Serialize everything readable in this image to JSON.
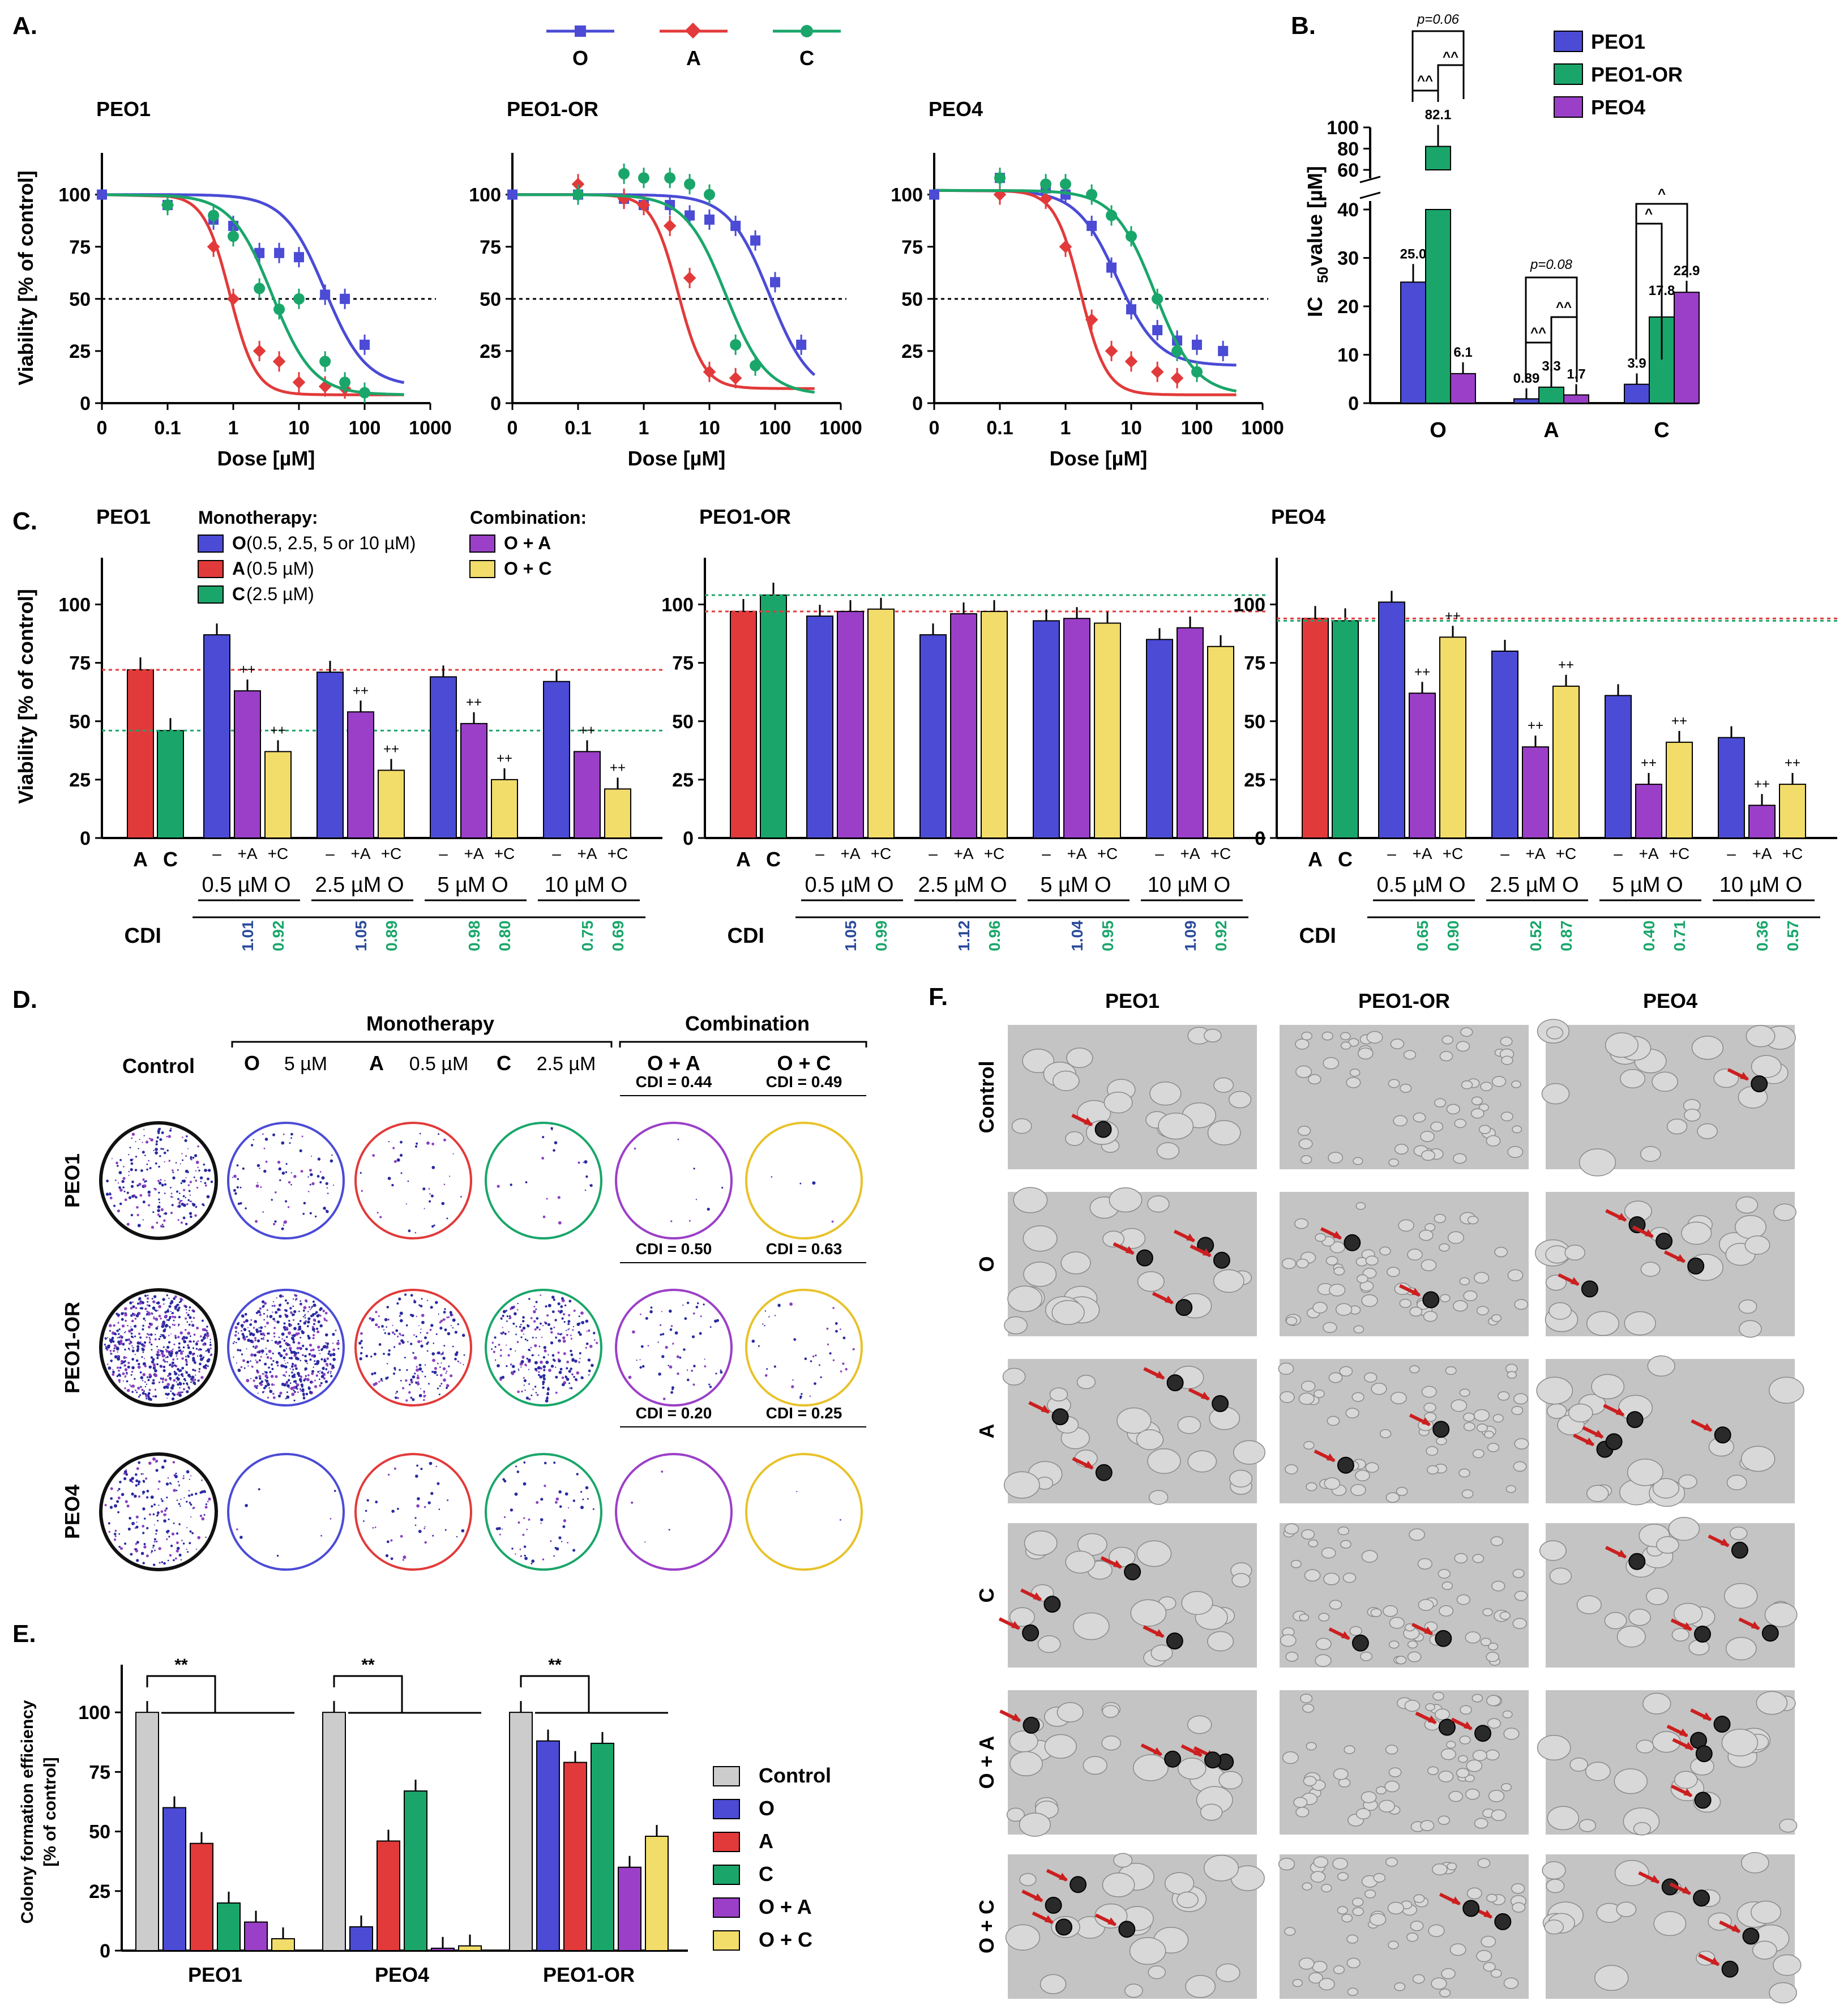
{
  "colors": {
    "O": "#4b4bd6",
    "A": "#e23a3a",
    "C": "#1aa66a",
    "OA": "#9b3fc8",
    "OC": "#f2dc6a",
    "Control": "#cccccc",
    "axis": "#000000"
  },
  "panel_labels": {
    "A": "A.",
    "B": "B.",
    "C": "C.",
    "D": "D.",
    "E": "E.",
    "F": "F."
  },
  "legend_A": {
    "O": "O",
    "A": "A",
    "C": "C"
  },
  "panel_A": {
    "ylabel": "Viability [% of control]",
    "xlabel": "Dose [µM]",
    "yticks": [
      "0",
      "25",
      "50",
      "75",
      "100"
    ],
    "xticks": [
      "0",
      "0.1",
      "1",
      "10",
      "100",
      "1000"
    ],
    "cells": [
      "PEO1",
      "PEO1-OR",
      "PEO4"
    ]
  },
  "chart_data": [
    {
      "type": "line",
      "title": "PEO1",
      "xlabel": "Dose [µM]",
      "ylabel": "Viability [% of control]",
      "xscale": "log",
      "ylim": [
        0,
        120
      ],
      "series": [
        {
          "name": "O",
          "x": [
            0.1,
            0.5,
            1,
            2.5,
            5,
            10,
            25,
            50,
            100
          ],
          "y": [
            95,
            88,
            85,
            72,
            72,
            70,
            52,
            50,
            28
          ],
          "ic50": 25.0
        },
        {
          "name": "A",
          "x": [
            0.1,
            0.5,
            1,
            2.5,
            5,
            10,
            25,
            50,
            100
          ],
          "y": [
            95,
            75,
            50,
            25,
            20,
            10,
            8,
            7,
            5
          ],
          "ic50": 0.89
        },
        {
          "name": "C",
          "x": [
            0.1,
            0.5,
            1,
            2.5,
            5,
            10,
            25,
            50,
            100
          ],
          "y": [
            95,
            90,
            80,
            55,
            45,
            50,
            20,
            10,
            5
          ],
          "ic50": 3.9
        }
      ]
    },
    {
      "type": "line",
      "title": "PEO1-OR",
      "xlabel": "Dose [µM]",
      "ylabel": "Viability [% of control]",
      "xscale": "log",
      "ylim": [
        0,
        120
      ],
      "series": [
        {
          "name": "O",
          "x": [
            0.1,
            0.5,
            1,
            2.5,
            5,
            10,
            25,
            50,
            100,
            250
          ],
          "y": [
            100,
            98,
            95,
            95,
            90,
            88,
            85,
            78,
            58,
            28
          ],
          "ic50": 82.1
        },
        {
          "name": "A",
          "x": [
            0.1,
            0.5,
            1,
            2.5,
            5,
            10,
            25
          ],
          "y": [
            105,
            98,
            95,
            85,
            60,
            15,
            12
          ],
          "ic50": 3.3
        },
        {
          "name": "C",
          "x": [
            0.1,
            0.5,
            1,
            2.5,
            5,
            10,
            25,
            50
          ],
          "y": [
            100,
            110,
            108,
            108,
            105,
            100,
            28,
            18
          ],
          "ic50": 17.8
        }
      ]
    },
    {
      "type": "line",
      "title": "PEO4",
      "xlabel": "Dose [µM]",
      "ylabel": "Viability [% of control]",
      "xscale": "log",
      "ylim": [
        0,
        120
      ],
      "series": [
        {
          "name": "O",
          "x": [
            0.1,
            0.5,
            1,
            2.5,
            5,
            10,
            25,
            50,
            100,
            250
          ],
          "y": [
            108,
            103,
            100,
            85,
            65,
            45,
            35,
            30,
            28,
            25
          ],
          "ic50": 6.1
        },
        {
          "name": "A",
          "x": [
            0.1,
            0.5,
            1,
            2.5,
            5,
            10,
            25,
            50
          ],
          "y": [
            100,
            98,
            75,
            40,
            25,
            20,
            15,
            12
          ],
          "ic50": 1.7
        },
        {
          "name": "C",
          "x": [
            0.1,
            0.5,
            1,
            2.5,
            5,
            10,
            25,
            50,
            100
          ],
          "y": [
            108,
            105,
            105,
            100,
            90,
            80,
            50,
            25,
            15
          ],
          "ic50": 22.9
        }
      ]
    },
    {
      "type": "bar",
      "title": "",
      "ylabel": "IC50 value [µM]",
      "categories": [
        "O",
        "A",
        "C"
      ],
      "series": [
        {
          "name": "PEO1",
          "values": [
            25.0,
            0.89,
            3.9
          ],
          "errors": [
            7,
            0.3,
            0.6
          ]
        },
        {
          "name": "PEO1-OR",
          "values": [
            82.1,
            3.3,
            17.8
          ],
          "errors": [
            10,
            0.6,
            5.5
          ]
        },
        {
          "name": "PEO4",
          "values": [
            6.1,
            1.7,
            22.9
          ],
          "errors": [
            1,
            0.5,
            1.2
          ]
        }
      ],
      "labels": [
        [
          "25.0",
          "0.89",
          "3.9"
        ],
        [
          "82.1",
          "3.3",
          "17.8"
        ],
        [
          "6.1",
          "1.7",
          "22.9"
        ]
      ],
      "annotations": [
        "p=0.06",
        "p=0.08",
        "^^",
        "^"
      ]
    },
    {
      "type": "bar",
      "title": "PEO1",
      "ylabel": "Viability [% of control]",
      "ylim": [
        0,
        120
      ],
      "mono": {
        "A": 72,
        "C": 46
      },
      "groups": [
        {
          "dose": "0.5 µM O",
          "O": 87,
          "OA": 63,
          "OC": 37,
          "cdi": [
            "1.01",
            "0.92"
          ]
        },
        {
          "dose": "2.5 µM O",
          "O": 71,
          "OA": 54,
          "OC": 29,
          "cdi": [
            "1.05",
            "0.89"
          ]
        },
        {
          "dose": "5 µM O",
          "O": 69,
          "OA": 49,
          "OC": 25,
          "cdi": [
            "0.98",
            "0.80"
          ]
        },
        {
          "dose": "10 µM O",
          "O": 67,
          "OA": 37,
          "OC": 21,
          "cdi": [
            "0.75",
            "0.69"
          ]
        }
      ]
    },
    {
      "type": "bar",
      "title": "PEO1-OR",
      "ylabel": "Viability [% of control]",
      "ylim": [
        0,
        120
      ],
      "mono": {
        "A": 97,
        "C": 104
      },
      "groups": [
        {
          "dose": "0.5 µM O",
          "O": 95,
          "OA": 97,
          "OC": 98,
          "cdi": [
            "1.05",
            "0.99"
          ]
        },
        {
          "dose": "2.5 µM O",
          "O": 87,
          "OA": 96,
          "OC": 97,
          "cdi": [
            "1.12",
            "0.96"
          ]
        },
        {
          "dose": "5 µM O",
          "O": 93,
          "OA": 94,
          "OC": 92,
          "cdi": [
            "1.04",
            "0.95"
          ]
        },
        {
          "dose": "10 µM O",
          "O": 85,
          "OA": 90,
          "OC": 82,
          "cdi": [
            "1.09",
            "0.92"
          ]
        }
      ]
    },
    {
      "type": "bar",
      "title": "PEO4",
      "ylabel": "Viability [% of control]",
      "ylim": [
        0,
        120
      ],
      "mono": {
        "A": 94,
        "C": 93
      },
      "groups": [
        {
          "dose": "0.5 µM O",
          "O": 101,
          "OA": 62,
          "OC": 86,
          "cdi": [
            "0.65",
            "0.90"
          ]
        },
        {
          "dose": "2.5 µM O",
          "O": 80,
          "OA": 39,
          "OC": 65,
          "cdi": [
            "0.52",
            "0.87"
          ]
        },
        {
          "dose": "5 µM O",
          "O": 61,
          "OA": 23,
          "OC": 41,
          "cdi": [
            "0.40",
            "0.71"
          ]
        },
        {
          "dose": "10 µM O",
          "O": 43,
          "OA": 14,
          "OC": 23,
          "cdi": [
            "0.36",
            "0.57"
          ]
        }
      ]
    },
    {
      "type": "bar",
      "title": "",
      "ylabel": "Colony formation efficiency [% of control]",
      "ylim": [
        0,
        120
      ],
      "categories": [
        "PEO1",
        "PEO4",
        "PEO1-OR"
      ],
      "series": [
        {
          "name": "Control",
          "values": [
            100,
            100,
            100
          ]
        },
        {
          "name": "O",
          "values": [
            60,
            10,
            88
          ]
        },
        {
          "name": "A",
          "values": [
            45,
            46,
            79
          ]
        },
        {
          "name": "C",
          "values": [
            20,
            67,
            87
          ]
        },
        {
          "name": "O + A",
          "values": [
            12,
            1,
            35
          ]
        },
        {
          "name": "O + C",
          "values": [
            5,
            2,
            48
          ]
        }
      ]
    }
  ],
  "panel_B": {
    "ylabel_main": "IC",
    "ylabel_sub": "50",
    "ylabel_rest": " value [µM]",
    "yticks": [
      "0",
      "10",
      "20",
      "30",
      "40",
      "60",
      "80",
      "100"
    ],
    "p1": "p=0.06",
    "p2": "p=0.08",
    "caret2": "^^",
    "caret1": "^"
  },
  "panel_C": {
    "legend_mono_title": "Monotherapy:",
    "legend_combo_title": "Combination:",
    "legend_O": "O",
    "legend_O_rest": " (0.5, 2.5, 5 or 10 µM)",
    "legend_A": "A",
    "legend_A_rest": " (0.5 µM)",
    "legend_C": "C",
    "legend_C_rest": " (2.5 µM)",
    "legend_OA": "O + A",
    "legend_OC": "O + C",
    "cdi_label": "CDI",
    "tick_minus": "–",
    "tick_pA": "+A",
    "tick_pC": "+C",
    "mono_A": "A",
    "mono_C": "C",
    "sig_pp": "++",
    "sig_hh": "##",
    "sig_h": "#",
    "sig_p": "+"
  },
  "panel_D": {
    "monotherapy": "Monotherapy",
    "combination": "Combination",
    "control": "Control",
    "colO": "O",
    "colO_dose": "5 µM",
    "colA": "A",
    "colA_dose": "0.5 µM",
    "colC": "C",
    "colC_dose": "2.5 µM",
    "colOA": "O + A",
    "colOC": "O + C",
    "rows": [
      {
        "name": "PEO1",
        "cdi_oa": "0.44",
        "cdi_oc": "0.49"
      },
      {
        "name": "PEO1-OR",
        "cdi_oa": "0.50",
        "cdi_oc": "0.63"
      },
      {
        "name": "PEO4",
        "cdi_oa": "0.20",
        "cdi_oc": "0.25"
      }
    ],
    "cdi_prefix": "CDI = "
  },
  "panel_E": {
    "ylabel": "Colony formation efficiency",
    "ylabel2": "[% of control]",
    "yticks": [
      "0",
      "25",
      "50",
      "75",
      "100"
    ],
    "sig": "**",
    "legend": [
      "Control",
      "O",
      "A",
      "C",
      "O + A",
      "O + C"
    ]
  },
  "panel_F": {
    "cols": [
      "PEO1",
      "PEO1-OR",
      "PEO4"
    ],
    "rows": [
      "Control",
      "O",
      "A",
      "C",
      "O + A",
      "O + C"
    ]
  }
}
